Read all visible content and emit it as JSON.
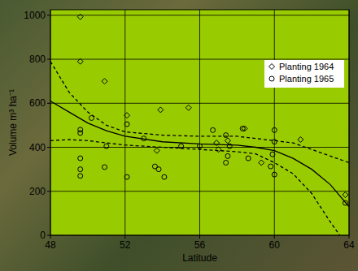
{
  "chart_data": {
    "type": "scatter",
    "x_label": "Latitude",
    "y_label": "Volume m³ ha⁻¹",
    "xlim": [
      48,
      64
    ],
    "xticks": [
      48,
      52,
      56,
      60,
      64
    ],
    "ylim": [
      0,
      1025
    ],
    "yticks": [
      0,
      200,
      400,
      600,
      800,
      1000
    ],
    "grid": true,
    "legend": "upper right",
    "color": "#99cc00",
    "series": [
      {
        "name": "Planting 1964",
        "type": "scatter",
        "marker": "diamond",
        "color": "#000000",
        "x": [
          49.6,
          49.6,
          50.9,
          53.9,
          55.4,
          52.1,
          53.7,
          56.9,
          57.5,
          58.4,
          61.4,
          63.8,
          57.0,
          59.3
        ],
        "values": [
          993,
          790,
          700,
          570,
          580,
          545,
          385,
          420,
          430,
          485,
          435,
          184,
          390,
          330
        ]
      },
      {
        "name": "Planting 1965",
        "type": "scatter",
        "marker": "circle",
        "color": "#000000",
        "x": [
          49.6,
          49.6,
          49.6,
          49.6,
          49.6,
          50.2,
          50.9,
          51.0,
          52.1,
          52.1,
          53.0,
          53.6,
          53.8,
          54.1,
          55.0,
          56.0,
          56.7,
          57.4,
          57.6,
          57.5,
          57.4,
          58.3,
          58.6,
          60.0,
          60.0,
          59.9,
          59.8,
          60.0,
          63.8
        ],
        "values": [
          480,
          465,
          350,
          300,
          270,
          533,
          310,
          405,
          505,
          265,
          440,
          313,
          300,
          265,
          405,
          405,
          478,
          455,
          405,
          360,
          330,
          485,
          350,
          478,
          425,
          368,
          313,
          276,
          147
        ]
      },
      {
        "type": "line",
        "line_style": "solid",
        "color": "#000000",
        "x": [
          48,
          49,
          50,
          51,
          52,
          54,
          56,
          58,
          59,
          60,
          61,
          62,
          63,
          64
        ],
        "values": [
          610,
          560,
          510,
          475,
          450,
          425,
          415,
          410,
          400,
          385,
          350,
          300,
          230,
          130
        ]
      },
      {
        "type": "line",
        "line_style": "dashed",
        "color": "#000000",
        "x": [
          48,
          49,
          50,
          51,
          52,
          54,
          56,
          58,
          60,
          61,
          62,
          63,
          64
        ],
        "values": [
          790,
          650,
          560,
          500,
          470,
          455,
          450,
          450,
          430,
          420,
          390,
          360,
          330
        ]
      },
      {
        "type": "line",
        "line_style": "dashed",
        "color": "#000000",
        "x": [
          48,
          49,
          50,
          52,
          54,
          56,
          58,
          59,
          60,
          61,
          62,
          63,
          63.5
        ],
        "values": [
          430,
          435,
          430,
          410,
          400,
          390,
          380,
          370,
          330,
          280,
          190,
          60,
          0
        ]
      }
    ]
  }
}
